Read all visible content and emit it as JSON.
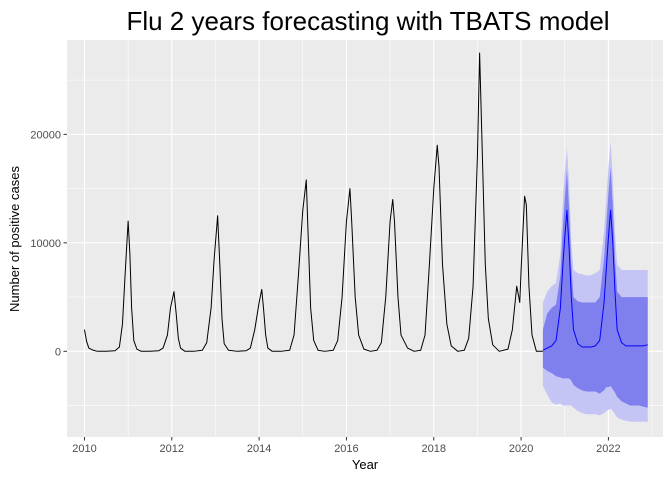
{
  "chart_data": {
    "type": "line",
    "title": "Flu 2 years forecasting with TBATS model",
    "xlabel": "Year",
    "ylabel": "Number of positive cases",
    "xlim": [
      2009.6,
      2023.25
    ],
    "ylim": [
      -7900,
      28700
    ],
    "x_ticks": [
      2010,
      2012,
      2014,
      2016,
      2018,
      2020,
      2022
    ],
    "x_tick_labels": [
      "2010",
      "2012",
      "2014",
      "2016",
      "2018",
      "2020",
      "2022"
    ],
    "y_ticks": [
      0,
      10000,
      20000
    ],
    "y_tick_labels": [
      "0",
      "10000",
      "20000"
    ],
    "grid": true,
    "colors": {
      "panel_background": "#ebebeb",
      "grid": "#ffffff",
      "observed_line": "#000000",
      "forecast_line": "#0000ff",
      "interval_95": "#c4c4f5",
      "interval_80": "#7f7fed"
    },
    "observed": {
      "x": [
        2010.0,
        2010.05,
        2010.1,
        2010.15,
        2010.2,
        2010.3,
        2010.5,
        2010.7,
        2010.8,
        2010.87,
        2010.93,
        2011.0,
        2011.04,
        2011.08,
        2011.13,
        2011.2,
        2011.3,
        2011.5,
        2011.7,
        2011.8,
        2011.9,
        2011.97,
        2012.05,
        2012.1,
        2012.15,
        2012.2,
        2012.3,
        2012.5,
        2012.7,
        2012.8,
        2012.9,
        2012.97,
        2013.05,
        2013.1,
        2013.15,
        2013.2,
        2013.3,
        2013.5,
        2013.7,
        2013.8,
        2013.9,
        2014.0,
        2014.06,
        2014.1,
        2014.15,
        2014.2,
        2014.3,
        2014.5,
        2014.7,
        2014.8,
        2014.9,
        2015.0,
        2015.08,
        2015.12,
        2015.18,
        2015.25,
        2015.35,
        2015.5,
        2015.7,
        2015.8,
        2015.9,
        2016.0,
        2016.08,
        2016.12,
        2016.2,
        2016.28,
        2016.4,
        2016.55,
        2016.7,
        2016.8,
        2016.9,
        2017.0,
        2017.06,
        2017.1,
        2017.18,
        2017.25,
        2017.4,
        2017.55,
        2017.7,
        2017.8,
        2017.9,
        2018.0,
        2018.08,
        2018.12,
        2018.2,
        2018.3,
        2018.4,
        2018.55,
        2018.7,
        2018.8,
        2018.9,
        2019.0,
        2019.05,
        2019.1,
        2019.18,
        2019.25,
        2019.35,
        2019.5,
        2019.7,
        2019.8,
        2019.9,
        2019.97,
        2020.0,
        2020.08,
        2020.12,
        2020.18,
        2020.25,
        2020.35,
        2020.5
      ],
      "y": [
        2000,
        900,
        300,
        200,
        100,
        0,
        0,
        50,
        400,
        2500,
        7000,
        12000,
        9000,
        4000,
        1000,
        200,
        0,
        0,
        50,
        300,
        1500,
        4000,
        5500,
        3500,
        1200,
        300,
        0,
        0,
        100,
        800,
        4000,
        8500,
        12500,
        8000,
        3000,
        700,
        100,
        0,
        50,
        300,
        2000,
        4500,
        5700,
        4000,
        1500,
        300,
        0,
        0,
        100,
        1500,
        7000,
        13000,
        15800,
        11000,
        4000,
        1000,
        100,
        0,
        100,
        1000,
        5000,
        12000,
        15000,
        12000,
        5000,
        1500,
        200,
        0,
        100,
        800,
        5000,
        12000,
        14000,
        12000,
        5000,
        1500,
        300,
        0,
        100,
        1500,
        8000,
        15000,
        19000,
        17000,
        8000,
        2500,
        500,
        0,
        100,
        1200,
        6000,
        18000,
        27500,
        20000,
        8000,
        3000,
        600,
        0,
        200,
        2000,
        6000,
        4500,
        7500,
        14300,
        13500,
        6000,
        1500,
        0,
        0
      ]
    },
    "forecast": {
      "x": [
        2020.5,
        2020.6,
        2020.7,
        2020.8,
        2020.9,
        2020.95,
        2021.0,
        2021.05,
        2021.1,
        2021.15,
        2021.2,
        2021.3,
        2021.4,
        2021.5,
        2021.6,
        2021.7,
        2021.8,
        2021.9,
        2021.95,
        2022.0,
        2022.05,
        2022.1,
        2022.15,
        2022.2,
        2022.3,
        2022.4,
        2022.5,
        2022.6,
        2022.7,
        2022.8,
        2022.9
      ],
      "point": [
        100,
        300,
        500,
        1000,
        4000,
        7500,
        10500,
        13000,
        9500,
        5000,
        2000,
        700,
        400,
        400,
        400,
        500,
        1000,
        4500,
        7500,
        10500,
        13000,
        10000,
        5500,
        2000,
        800,
        500,
        500,
        500,
        500,
        500,
        600
      ],
      "lo80": [
        -1500,
        -1800,
        -2000,
        -2300,
        -2400,
        -2500,
        -2500,
        -2500,
        -2500,
        -2700,
        -3100,
        -3400,
        -3600,
        -3700,
        -3700,
        -3700,
        -3900,
        -3600,
        -3300,
        -3300,
        -3200,
        -3500,
        -3800,
        -4200,
        -4600,
        -4800,
        -5000,
        -5000,
        -5000,
        -5100,
        -5200
      ],
      "hi80": [
        2000,
        3500,
        4000,
        4300,
        7000,
        11000,
        14000,
        16700,
        13000,
        8000,
        5000,
        4600,
        4500,
        4500,
        4500,
        4500,
        5000,
        8500,
        11500,
        14500,
        17000,
        13500,
        8500,
        5500,
        5000,
        5000,
        5000,
        5000,
        5000,
        5000,
        5000
      ],
      "lo95": [
        -3200,
        -4000,
        -4700,
        -4900,
        -4800,
        -5000,
        -5000,
        -5000,
        -5000,
        -5000,
        -5200,
        -5500,
        -5700,
        -5800,
        -5800,
        -5800,
        -5900,
        -5700,
        -5500,
        -5400,
        -5300,
        -5500,
        -5800,
        -6100,
        -6300,
        -6400,
        -6500,
        -6500,
        -6500,
        -6500,
        -6500
      ],
      "hi95": [
        4500,
        5500,
        6000,
        6300,
        9000,
        13500,
        16500,
        18700,
        15500,
        10000,
        7500,
        7200,
        7100,
        7000,
        7000,
        7200,
        7500,
        11000,
        14000,
        17000,
        19300,
        16000,
        11000,
        8000,
        7500,
        7500,
        7500,
        7500,
        7500,
        7500,
        7500
      ]
    }
  }
}
